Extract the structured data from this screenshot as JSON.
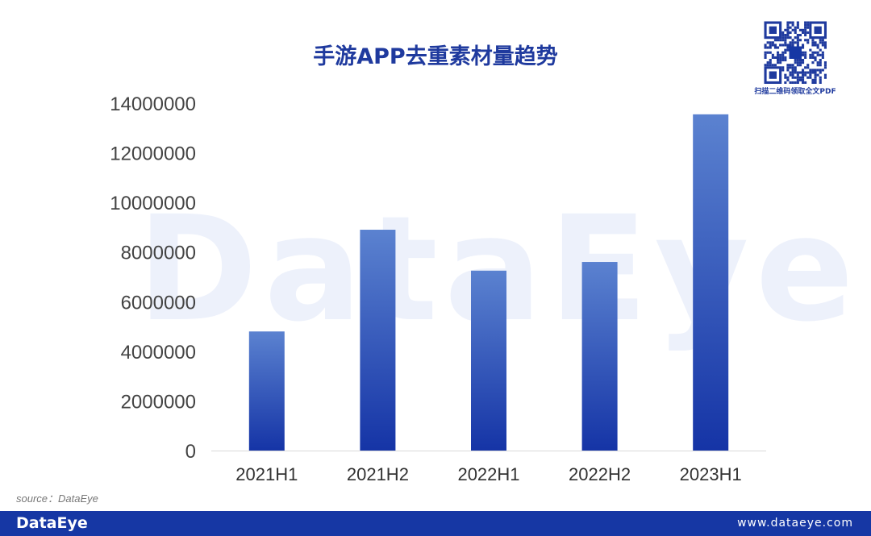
{
  "title": "手游APP去重素材量趋势",
  "watermark": "DataEye",
  "qr_caption": "扫描二维码领取全文PDF",
  "source": "source：DataEye",
  "footer": {
    "logo": "DataEye",
    "url": "www.dataeye.com"
  },
  "colors": {
    "title": "#1f3a9e",
    "bar_top": "#5b82d0",
    "bar_bottom": "#1534a6",
    "footer": "#1637a4"
  },
  "chart_data": {
    "type": "bar",
    "title": "手游APP去重素材量趋势",
    "categories": [
      "2021H1",
      "2021H2",
      "2022H1",
      "2022H2",
      "2023H1"
    ],
    "values": [
      4800000,
      8900000,
      7250000,
      7600000,
      13550000
    ],
    "ylim": [
      0,
      14000000
    ],
    "yticks": [
      "0",
      "2000000",
      "4000000",
      "6000000",
      "8000000",
      "10000000",
      "12000000",
      "14000000"
    ],
    "grid": false,
    "legend": "none"
  }
}
